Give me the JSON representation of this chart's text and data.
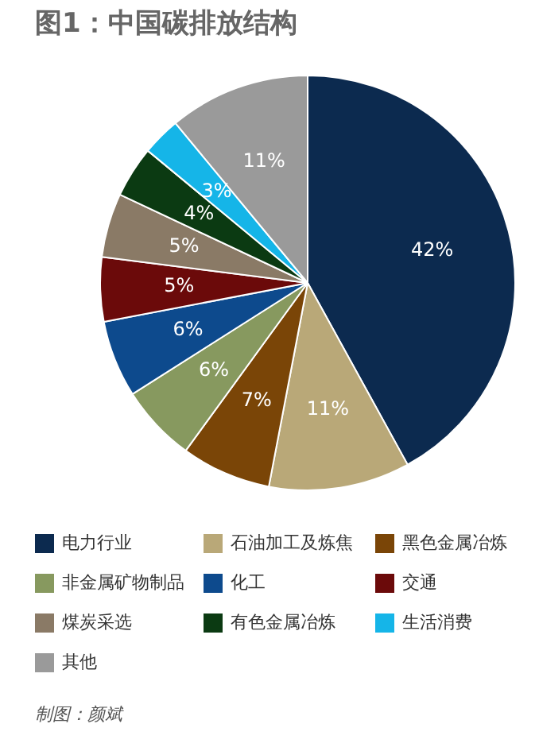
{
  "chart_data": {
    "type": "pie",
    "title": "图1：中国碳排放结构",
    "categories": [
      "电力行业",
      "石油加工及炼焦",
      "黑色金属冶炼",
      "非金属矿物制品",
      "化工",
      "交通",
      "煤炭采选",
      "有色金属冶炼",
      "生活消费",
      "其他"
    ],
    "values": [
      42,
      11,
      7,
      6,
      6,
      5,
      5,
      4,
      3,
      11
    ],
    "colors": [
      "#0c2a4f",
      "#b9a878",
      "#7a4507",
      "#87995f",
      "#0d4a8d",
      "#6b0a0a",
      "#8a7a66",
      "#0b3a12",
      "#15b5e8",
      "#9a9a9a"
    ],
    "value_labels": [
      "42%",
      "11%",
      "7%",
      "6%",
      "6%",
      "5%",
      "5%",
      "4%",
      "3%",
      "11%"
    ],
    "legend": "bottom",
    "annotations": [
      "制图：颜斌"
    ]
  }
}
